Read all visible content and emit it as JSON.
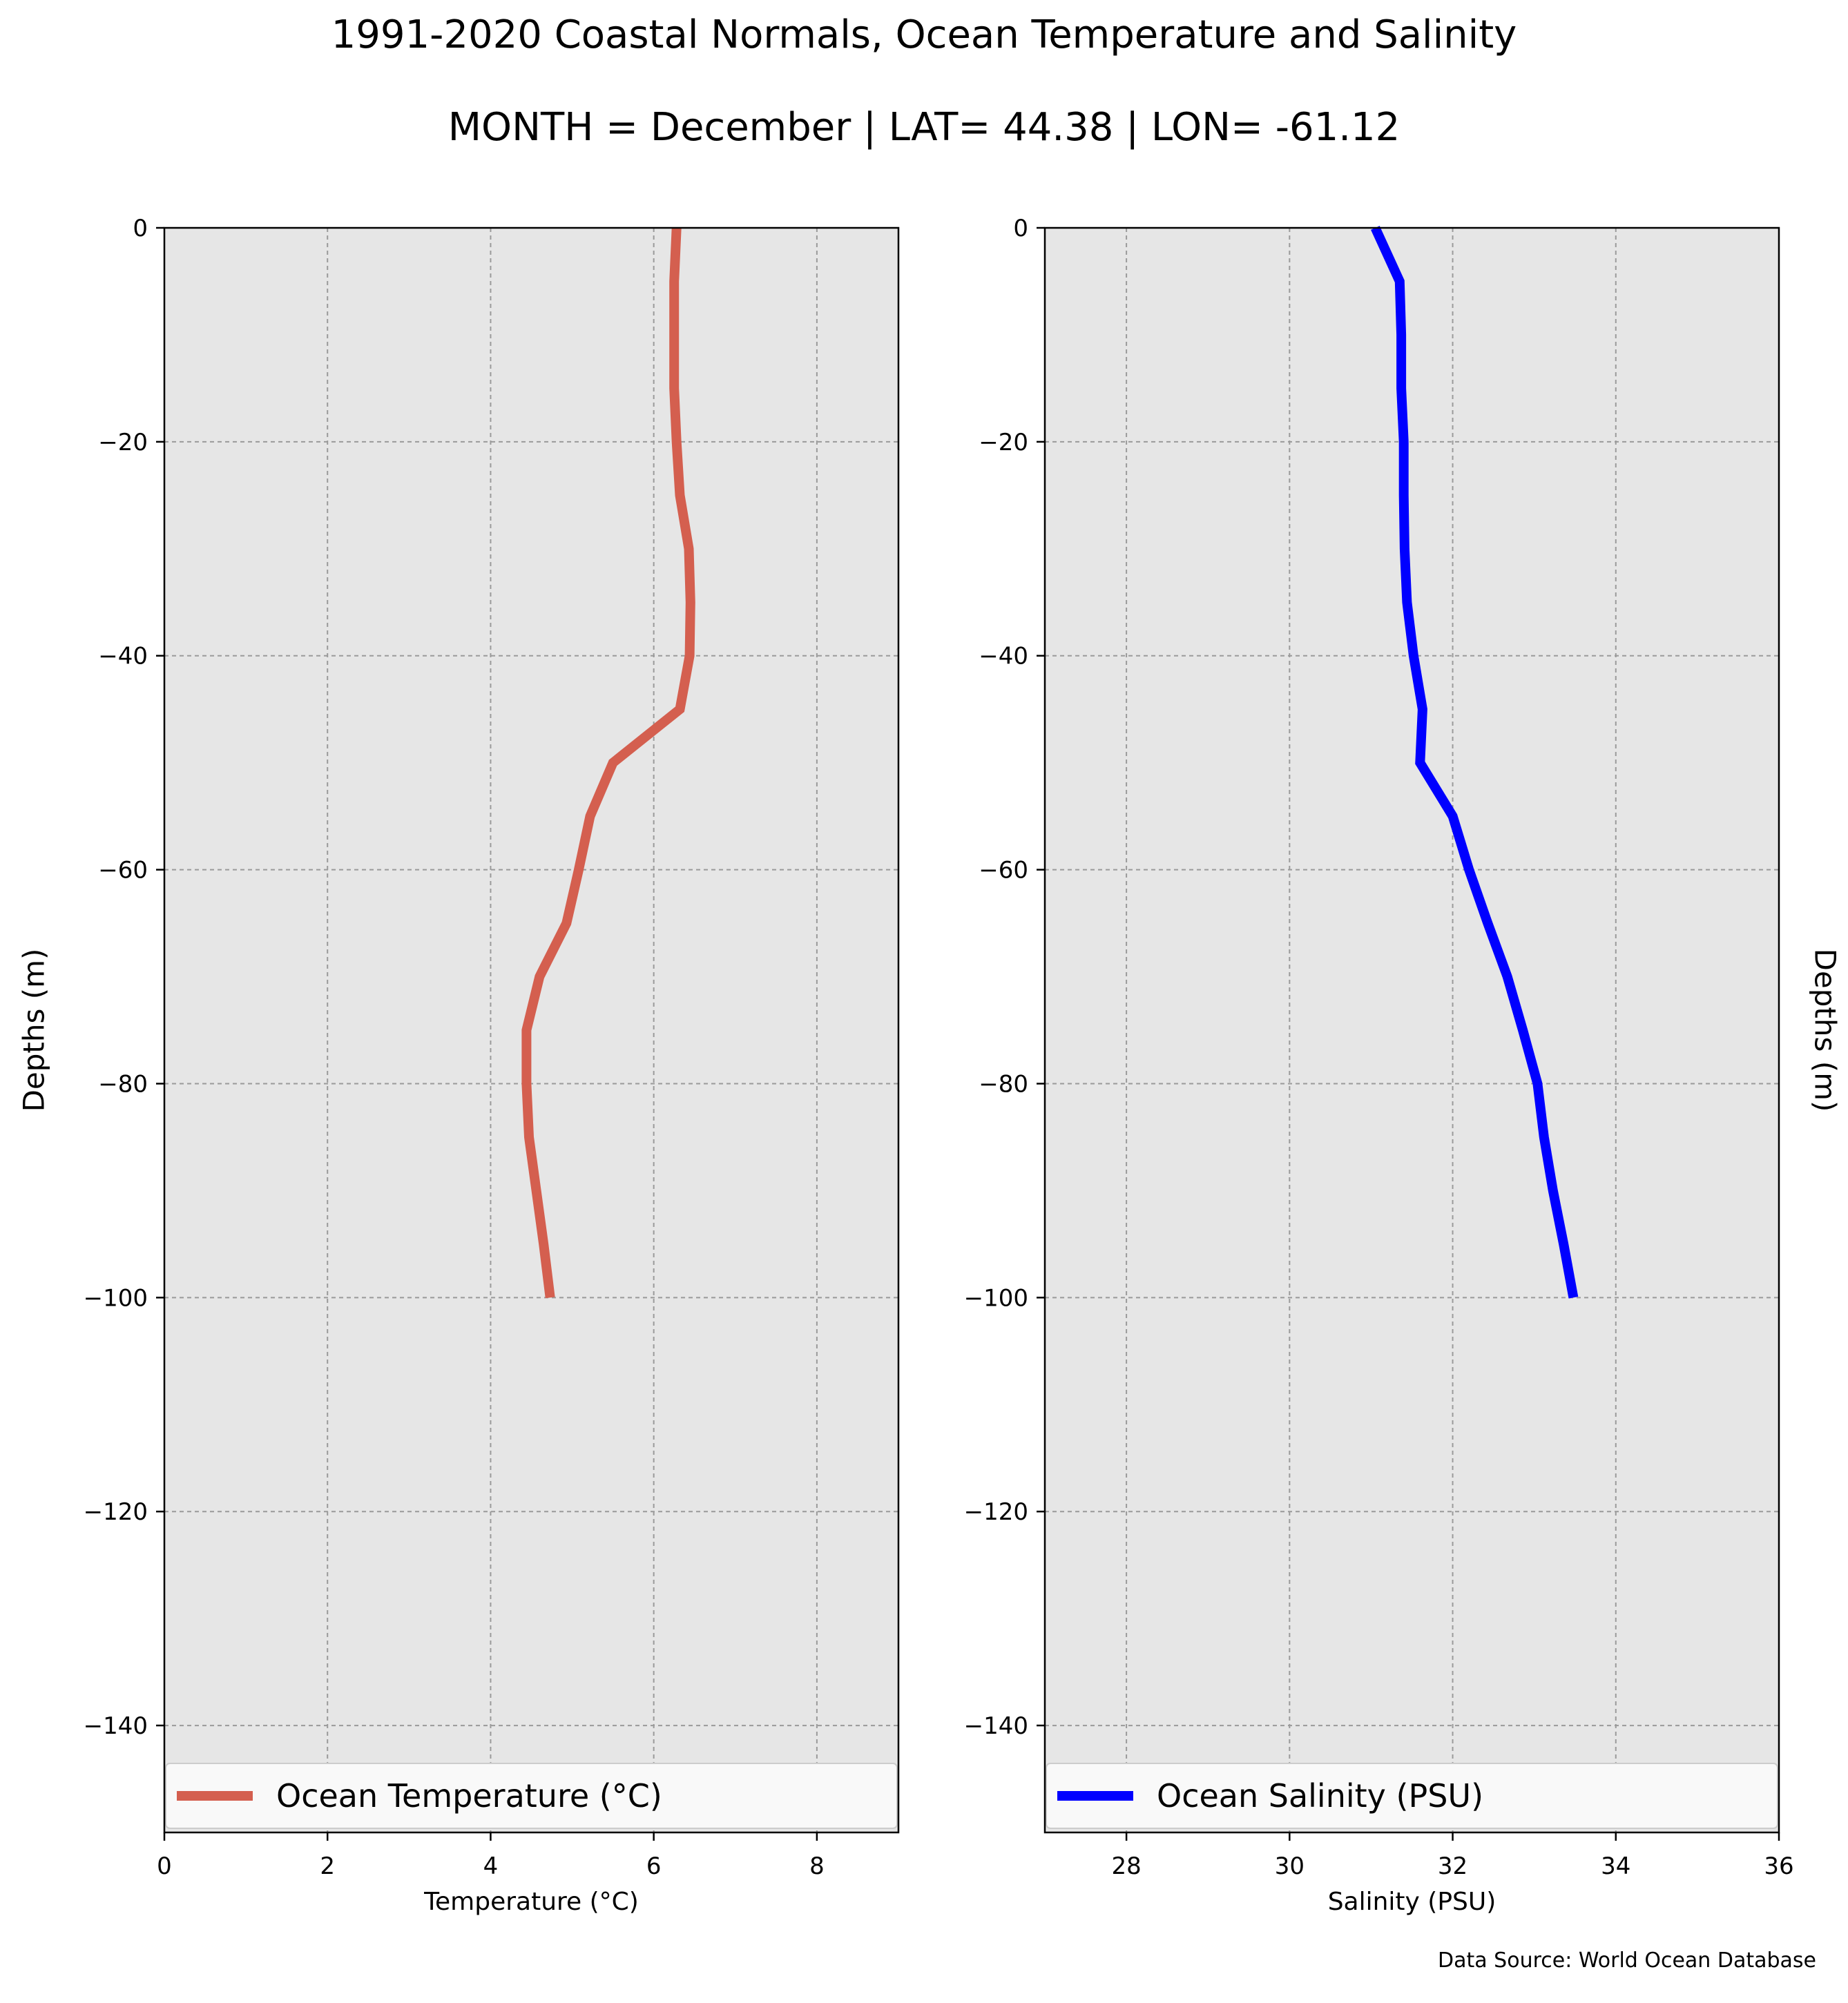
{
  "title": "1991-2020 Coastal Normals, Ocean Temperature and Salinity",
  "subtitle": "MONTH = December | LAT= 44.38 | LON= -61.12",
  "source": "Data Source: World Ocean Database",
  "chart_data": [
    {
      "type": "line",
      "xlabel": "Temperature (°C)",
      "ylabel": "Depths (m)",
      "xlim": [
        0,
        9
      ],
      "ylim": [
        -150,
        0
      ],
      "x_ticks": [
        0,
        2,
        4,
        6,
        8
      ],
      "x_tick_labels": [
        "0",
        "2",
        "4",
        "6",
        "8"
      ],
      "y_ticks": [
        0,
        -20,
        -40,
        -60,
        -80,
        -100,
        -120,
        -140
      ],
      "y_tick_labels": [
        "0",
        "−20",
        "−40",
        "−60",
        "−80",
        "−100",
        "−120",
        "−140"
      ],
      "grid": true,
      "legend_position": "lower-center",
      "series": [
        {
          "name": "Ocean Temperature (°C)",
          "color": "#d45f4f",
          "depth": [
            0,
            -5,
            -10,
            -15,
            -20,
            -25,
            -30,
            -35,
            -40,
            -45,
            -50,
            -55,
            -60,
            -65,
            -70,
            -75,
            -80,
            -85,
            -90,
            -95,
            -100
          ],
          "values": [
            6.28,
            6.25,
            6.25,
            6.25,
            6.28,
            6.32,
            6.43,
            6.45,
            6.44,
            6.32,
            5.5,
            5.22,
            5.08,
            4.93,
            4.6,
            4.44,
            4.44,
            4.47,
            4.56,
            4.65,
            4.73
          ]
        }
      ]
    },
    {
      "type": "line",
      "xlabel": "Salinity (PSU)",
      "ylabel": "Depths (m)",
      "xlim": [
        27,
        36
      ],
      "ylim": [
        -150,
        0
      ],
      "x_ticks": [
        28,
        30,
        32,
        34,
        36
      ],
      "x_tick_labels": [
        "28",
        "30",
        "32",
        "34",
        "36"
      ],
      "y_ticks": [
        0,
        -20,
        -40,
        -60,
        -80,
        -100,
        -120,
        -140
      ],
      "y_tick_labels": [
        "0",
        "−20",
        "−40",
        "−60",
        "−80",
        "−100",
        "−120",
        "−140"
      ],
      "grid": true,
      "legend_position": "lower-center",
      "series": [
        {
          "name": "Ocean Salinity (PSU)",
          "color": "#0000ff",
          "depth": [
            0,
            -5,
            -10,
            -15,
            -20,
            -25,
            -30,
            -35,
            -40,
            -45,
            -50,
            -55,
            -60,
            -65,
            -70,
            -75,
            -80,
            -85,
            -90,
            -95,
            -100
          ],
          "values": [
            31.05,
            31.35,
            31.37,
            31.37,
            31.4,
            31.4,
            31.41,
            31.44,
            31.52,
            31.63,
            31.6,
            32.0,
            32.2,
            32.43,
            32.67,
            32.86,
            33.04,
            33.12,
            33.23,
            33.36,
            33.48
          ]
        }
      ]
    }
  ]
}
